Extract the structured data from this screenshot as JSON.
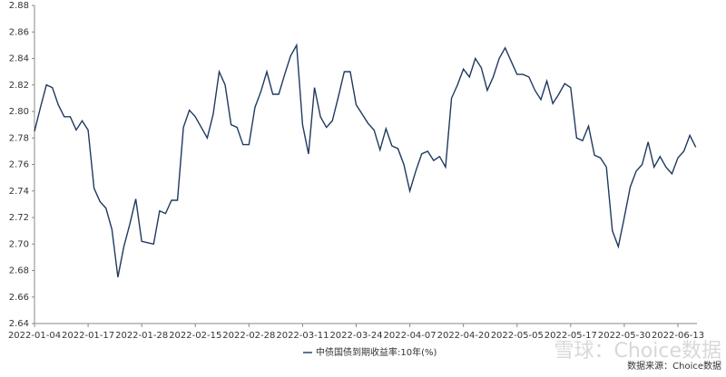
{
  "chart_data": {
    "type": "line",
    "categories": [
      "2022-01-04",
      null,
      null,
      null,
      null,
      null,
      null,
      null,
      null,
      "2022-01-17",
      null,
      null,
      null,
      null,
      null,
      null,
      null,
      null,
      "2022-01-28",
      null,
      null,
      null,
      null,
      null,
      null,
      null,
      null,
      "2022-02-15",
      null,
      null,
      null,
      null,
      null,
      null,
      null,
      null,
      "2022-02-28",
      null,
      null,
      null,
      null,
      null,
      null,
      null,
      null,
      "2022-03-11",
      null,
      null,
      null,
      null,
      null,
      null,
      null,
      null,
      "2022-03-24",
      null,
      null,
      null,
      null,
      null,
      null,
      null,
      null,
      "2022-04-07",
      null,
      null,
      null,
      null,
      null,
      null,
      null,
      null,
      "2022-04-20",
      null,
      null,
      null,
      null,
      null,
      null,
      null,
      null,
      "2022-05-05",
      null,
      null,
      null,
      null,
      null,
      null,
      null,
      null,
      "2022-05-17",
      null,
      null,
      null,
      null,
      null,
      null,
      null,
      null,
      "2022-05-30",
      null,
      null,
      null,
      null,
      null,
      null,
      null,
      null,
      "2022-06-13",
      null,
      null,
      null
    ],
    "series": [
      {
        "name": "中债国债到期收益率:10年(%)",
        "color": "#1f3a5f",
        "values": [
          2.785,
          2.803,
          2.82,
          2.818,
          2.805,
          2.796,
          2.796,
          2.786,
          2.793,
          2.786,
          2.742,
          2.732,
          2.727,
          2.711,
          2.675,
          2.698,
          2.715,
          2.734,
          2.702,
          2.701,
          2.7,
          2.725,
          2.723,
          2.733,
          2.733,
          2.788,
          2.801,
          2.796,
          2.788,
          2.78,
          2.798,
          2.83,
          2.82,
          2.79,
          2.788,
          2.775,
          2.775,
          2.803,
          2.815,
          2.83,
          2.813,
          2.813,
          2.828,
          2.842,
          2.85,
          2.79,
          2.768,
          2.818,
          2.796,
          2.788,
          2.793,
          2.811,
          2.83,
          2.83,
          2.805,
          2.798,
          2.791,
          2.786,
          2.771,
          2.787,
          2.774,
          2.772,
          2.76,
          2.74,
          2.755,
          2.768,
          2.77,
          2.763,
          2.766,
          2.758,
          2.81,
          2.82,
          2.832,
          2.826,
          2.84,
          2.833,
          2.816,
          2.826,
          2.84,
          2.848,
          2.838,
          2.828,
          2.828,
          2.826,
          2.816,
          2.809,
          2.823,
          2.806,
          2.813,
          2.821,
          2.818,
          2.78,
          2.778,
          2.789,
          2.767,
          2.765,
          2.758,
          2.71,
          2.698,
          2.72,
          2.743,
          2.755,
          2.76,
          2.777,
          2.758,
          2.766,
          2.758,
          2.753,
          2.765,
          2.77,
          2.782,
          2.773
        ]
      }
    ],
    "ylim": [
      2.64,
      2.88
    ],
    "yticks": [
      2.64,
      2.66,
      2.68,
      {
        "value": 2.7,
        "label": "2.70"
      },
      2.72,
      2.74,
      2.76,
      2.78,
      {
        "value": 2.8,
        "label": "2.80"
      },
      2.82,
      2.84,
      2.86,
      2.88
    ],
    "grid": false,
    "source": "数据来源：Choice数据",
    "watermark": "雪球：Choice数据"
  }
}
